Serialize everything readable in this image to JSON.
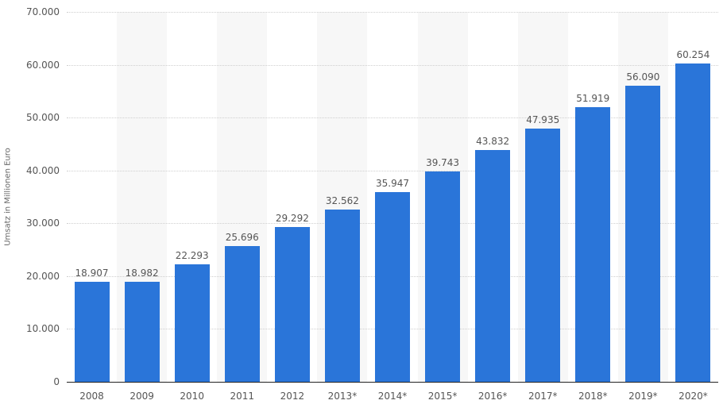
{
  "chart_data": {
    "type": "bar",
    "title": "",
    "xlabel": "",
    "ylabel": "Umsatz in Millionen Euro",
    "ylim": [
      0,
      70000
    ],
    "yticks": [
      0,
      10000,
      20000,
      30000,
      40000,
      50000,
      60000,
      70000
    ],
    "ytick_labels": [
      "0",
      "10.000",
      "20.000",
      "30.000",
      "40.000",
      "50.000",
      "60.000",
      "70.000"
    ],
    "grid": true,
    "legend": null,
    "bar_color": "#2a75d9",
    "categories": [
      "2008",
      "2009",
      "2010",
      "2011",
      "2012",
      "2013*",
      "2014*",
      "2015*",
      "2016*",
      "2017*",
      "2018*",
      "2019*",
      "2020*"
    ],
    "values": [
      18907,
      18982,
      22293,
      25696,
      29292,
      32562,
      35947,
      39743,
      43832,
      47935,
      51919,
      56090,
      60254
    ],
    "value_labels": [
      "18.907",
      "18.982",
      "22.293",
      "25.696",
      "29.292",
      "32.562",
      "35.947",
      "39.743",
      "43.832",
      "47.935",
      "51.919",
      "56.090",
      "60.254"
    ]
  }
}
